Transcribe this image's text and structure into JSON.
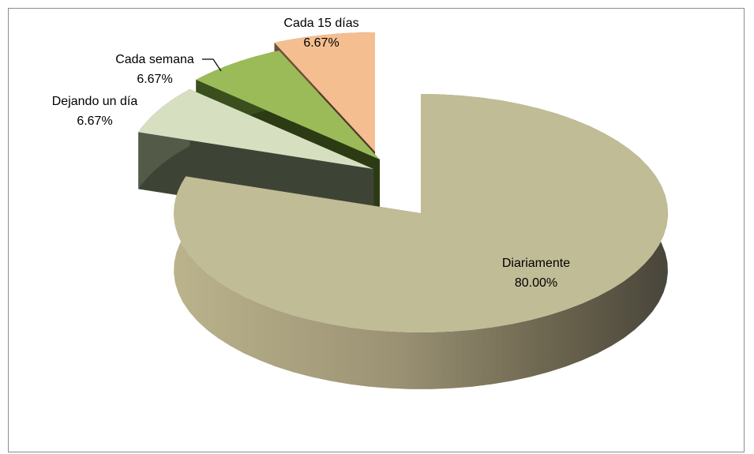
{
  "chart_data": {
    "type": "pie",
    "title": "",
    "slices": [
      {
        "label": "Diariamente",
        "value": 80.0,
        "value_label": "80.00%",
        "color": "#C0BC96"
      },
      {
        "label": "Dejando un día",
        "value": 6.67,
        "value_label": "6.67%",
        "color": "#D6E0C0"
      },
      {
        "label": "Cada semana",
        "value": 6.67,
        "value_label": "6.67%",
        "color": "#9BBB59"
      },
      {
        "label": "Cada 15 días",
        "value": 6.67,
        "value_label": "6.67%",
        "color": "#F5BE90"
      }
    ],
    "style": "3d-exploded",
    "legend": "none"
  }
}
